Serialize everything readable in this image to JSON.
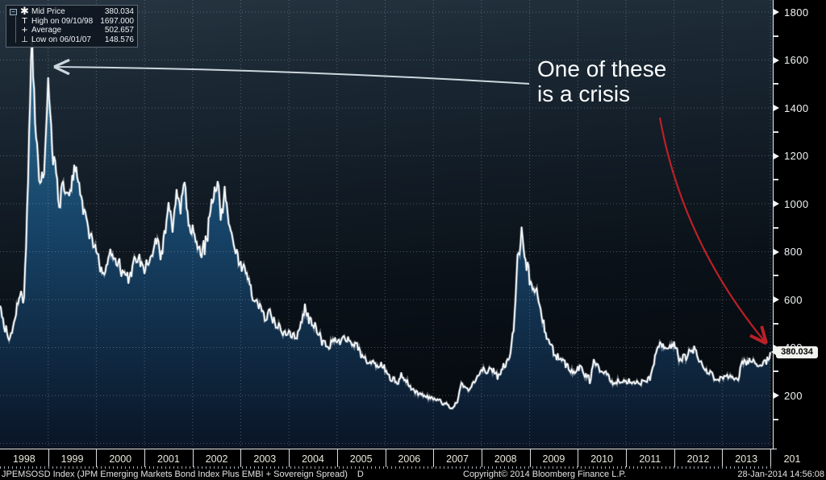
{
  "security": {
    "label": "JPEMSOSD Index (JPM Emerging Markets Bond Index Plus EMBI + Sovereign Spread)",
    "frequency": "D"
  },
  "status": {
    "copyright": "Copyright© 2014 Bloomberg Finance L.P.",
    "timestamp": "28-Jan-2014 14:56:08"
  },
  "legend": {
    "expander_glyph": "−",
    "rows": [
      {
        "icon": "✱",
        "icon_name": "mid-price-marker-icon",
        "label": "Mid Price",
        "value": "380.034"
      },
      {
        "icon": "T",
        "icon_name": "high-marker-icon",
        "label": "High on 09/10/98",
        "value": "1697.000"
      },
      {
        "icon": "+",
        "icon_name": "average-marker-icon",
        "label": "Average",
        "value": "502.657"
      },
      {
        "icon": "⊥",
        "icon_name": "low-marker-icon",
        "label": "Low on 06/01/07",
        "value": "148.576"
      }
    ]
  },
  "annotation": {
    "line1": "One of these",
    "line2": "is a crisis"
  },
  "price_label": "380.034",
  "colors": {
    "line": "#f4f7f9",
    "fill_top": "#2e7093",
    "fill_mid": "#17456a",
    "fill_bottom": "#0a1526",
    "grid": "rgba(175,195,210,0.38)",
    "red_arrow": "#bb2026",
    "white_arrow": "#ccd7dd"
  },
  "chart_data": {
    "type": "area",
    "series_name": "JPEMSOSD Index Mid Price",
    "x_start": "1998-01",
    "x_end": "2014-01",
    "interval": "monthly",
    "values": [
      560,
      480,
      455,
      470,
      530,
      640,
      600,
      1100,
      1697,
      1250,
      1050,
      1150,
      1510,
      1250,
      1150,
      1000,
      1080,
      1020,
      1100,
      1150,
      1050,
      980,
      900,
      850,
      780,
      760,
      720,
      760,
      805,
      750,
      720,
      690,
      680,
      720,
      780,
      755,
      730,
      750,
      790,
      830,
      800,
      850,
      950,
      900,
      1000,
      960,
      1080,
      930,
      880,
      830,
      780,
      820,
      900,
      1000,
      1060,
      980,
      1030,
      950,
      870,
      800,
      740,
      710,
      670,
      620,
      580,
      550,
      530,
      550,
      520,
      490,
      470,
      450,
      470,
      450,
      430,
      490,
      560,
      520,
      490,
      470,
      440,
      420,
      400,
      430,
      440,
      420,
      430,
      440,
      420,
      400,
      380,
      355,
      335,
      350,
      330,
      320,
      305,
      285,
      265,
      250,
      280,
      260,
      240,
      225,
      215,
      205,
      195,
      190,
      185,
      180,
      175,
      165,
      155,
      149,
      175,
      250,
      230,
      215,
      255,
      275,
      295,
      305,
      315,
      295,
      285,
      305,
      325,
      345,
      470,
      790,
      865,
      750,
      690,
      670,
      640,
      540,
      460,
      420,
      390,
      360,
      340,
      320,
      310,
      295,
      305,
      320,
      280,
      265,
      335,
      320,
      295,
      285,
      270,
      250,
      265,
      255,
      255,
      265,
      255,
      245,
      255,
      265,
      275,
      330,
      395,
      420,
      400,
      410,
      400,
      365,
      345,
      355,
      400,
      385,
      360,
      330,
      305,
      285,
      275,
      270,
      265,
      275,
      285,
      275,
      270,
      345,
      330,
      355,
      340,
      315,
      330,
      350,
      380.034
    ],
    "stats": {
      "last": 380.034,
      "high": {
        "date": "09/10/98",
        "value": 1697.0
      },
      "average": 502.657,
      "low": {
        "date": "06/01/07",
        "value": 148.576
      }
    },
    "ylim": [
      0,
      1870
    ],
    "y_ticks": [
      1800,
      1600,
      1400,
      1200,
      1000,
      800,
      600,
      400,
      200
    ],
    "x_tick_labels": [
      "1998",
      "1999",
      "2000",
      "2001",
      "2002",
      "2003",
      "2004",
      "2005",
      "2006",
      "2007",
      "2008",
      "2009",
      "2010",
      "2011",
      "2012",
      "2013"
    ],
    "x_partial_last_label": "201",
    "grid": "dotted",
    "legend_position": "top-left"
  }
}
